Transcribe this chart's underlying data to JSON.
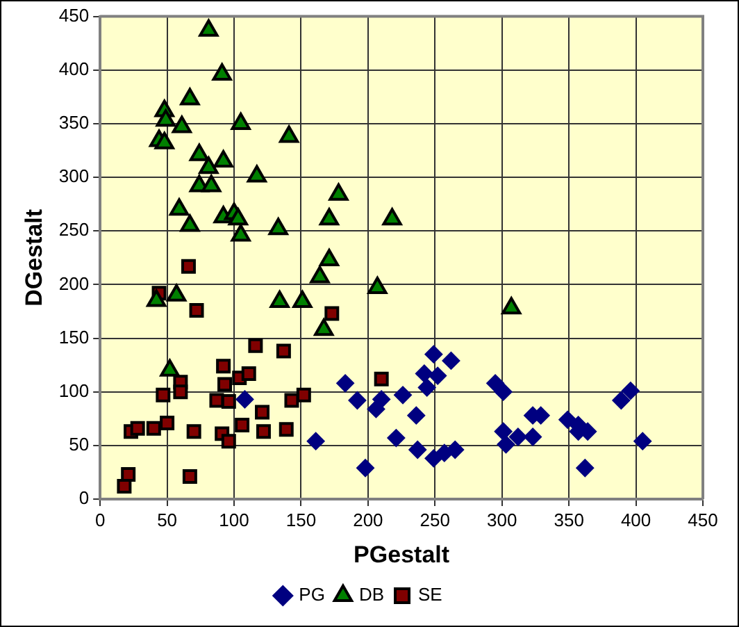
{
  "chart_data": {
    "type": "scatter",
    "xlabel": "PGestalt",
    "ylabel": "DGestalt",
    "xlim": [
      0,
      450
    ],
    "xticks": [
      0,
      50,
      100,
      150,
      200,
      250,
      300,
      350,
      400,
      450
    ],
    "ylim": [
      0,
      450
    ],
    "yticks": [
      0,
      50,
      100,
      150,
      200,
      250,
      300,
      350,
      400,
      450
    ],
    "grid": true,
    "legend": "bottom",
    "series": [
      {
        "name": "PG",
        "color": "#000080",
        "marker": "diamond",
        "x": [
          161,
          183,
          192,
          198,
          206,
          210,
          226,
          221,
          236,
          237,
          242,
          244,
          249,
          252,
          262,
          249,
          257,
          265,
          295,
          301,
          301,
          303,
          312,
          323,
          323,
          329,
          349,
          357,
          357,
          364,
          362,
          389,
          396,
          405,
          108
        ],
        "values": [
          54,
          108,
          92,
          29,
          84,
          93,
          97,
          57,
          78,
          46,
          117,
          104,
          135,
          115,
          129,
          38,
          43,
          46,
          108,
          100,
          63,
          51,
          58,
          58,
          78,
          78,
          74,
          69,
          63,
          63,
          29,
          92,
          101,
          54,
          93
        ]
      },
      {
        "name": "DB",
        "color": "#008000",
        "marker": "triangle",
        "x": [
          81,
          91,
          67,
          48,
          49,
          61,
          105,
          141,
          44,
          48,
          74,
          92,
          81,
          117,
          74,
          83,
          178,
          59,
          67,
          92,
          100,
          103,
          105,
          133,
          171,
          218,
          171,
          164,
          167,
          207,
          307,
          42,
          57,
          134,
          151,
          52
        ],
        "values": [
          437,
          396,
          373,
          362,
          353,
          347,
          350,
          338,
          334,
          332,
          321,
          315,
          309,
          301,
          292,
          292,
          284,
          270,
          255,
          263,
          266,
          261,
          246,
          252,
          261,
          261,
          223,
          207,
          158,
          197,
          178,
          185,
          190,
          184,
          184,
          120
        ]
      },
      {
        "name": "SE",
        "color": "#800000",
        "marker": "square",
        "x": [
          66,
          44,
          72,
          173,
          116,
          137,
          92,
          104,
          111,
          60,
          47,
          60,
          93,
          87,
          96,
          152,
          143,
          121,
          50,
          23,
          28,
          40,
          70,
          91,
          96,
          106,
          122,
          139,
          21,
          18,
          67,
          210
        ],
        "values": [
          217,
          192,
          176,
          173,
          143,
          138,
          124,
          113,
          117,
          109,
          97,
          100,
          107,
          92,
          91,
          97,
          92,
          81,
          71,
          63,
          66,
          66,
          63,
          61,
          54,
          69,
          63,
          65,
          23,
          12,
          21,
          112
        ]
      }
    ]
  }
}
